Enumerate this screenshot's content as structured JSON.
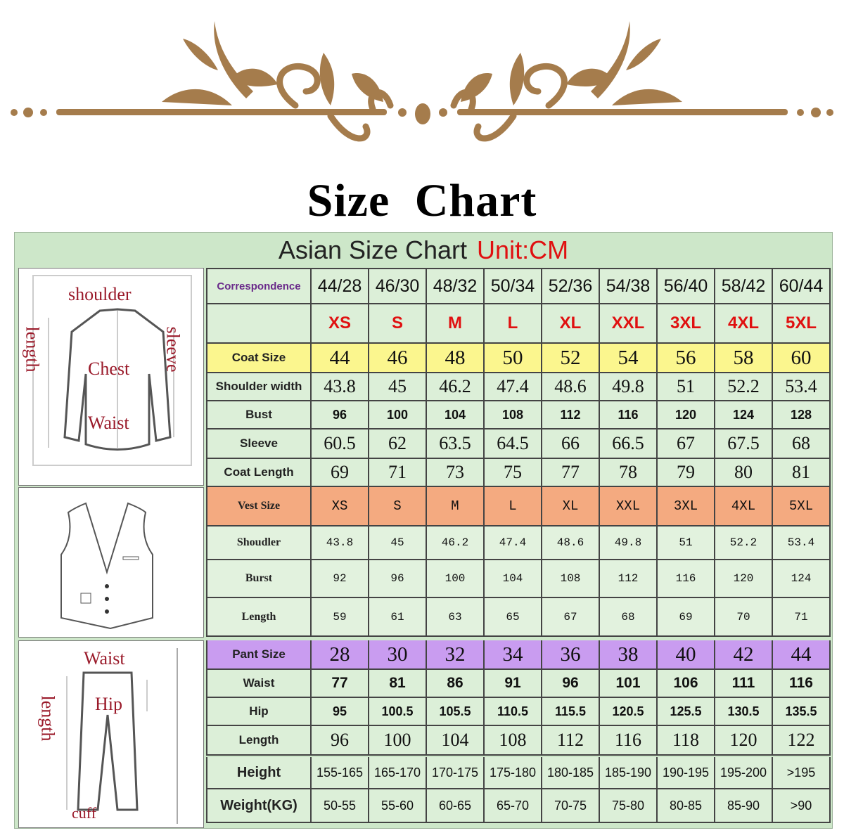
{
  "title": "Size Chart",
  "colors": {
    "ornament": "#a57c4c",
    "background": "#cde7c9",
    "cell": "#dcefd8",
    "coat_row": "#fbf68e",
    "vest_row": "#f4aa80",
    "pant_row": "#c99cf0",
    "size_letters": "#e01010"
  },
  "chart_header": {
    "title": "Asian Size Chart",
    "unit": "Unit:CM"
  },
  "diagrams": {
    "coat": {
      "shoulder": "shoulder",
      "length": "length",
      "sleeve": "sleeve",
      "chest": "Chest",
      "waist": "Waist"
    },
    "pants": {
      "waist": "Waist",
      "hip": "Hip",
      "length": "length",
      "cuff": "cuff"
    }
  },
  "table": {
    "rows": [
      {
        "style": "corr",
        "label": "Correspondence",
        "values": [
          "44/28",
          "46/30",
          "48/32",
          "50/34",
          "52/36",
          "54/38",
          "56/40",
          "58/42",
          "60/44"
        ]
      },
      {
        "style": "letters",
        "label": "",
        "values": [
          "XS",
          "S",
          "M",
          "L",
          "XL",
          "XXL",
          "3XL",
          "4XL",
          "5XL"
        ]
      },
      {
        "style": "coat",
        "label": "Coat Size",
        "values": [
          "44",
          "46",
          "48",
          "50",
          "52",
          "54",
          "56",
          "58",
          "60"
        ]
      },
      {
        "style": "plain",
        "label": "Shoulder width",
        "values": [
          "43.8",
          "45",
          "46.2",
          "47.4",
          "48.6",
          "49.8",
          "51",
          "52.2",
          "53.4"
        ]
      },
      {
        "style": "small",
        "label": "Bust",
        "values": [
          "96",
          "100",
          "104",
          "108",
          "112",
          "116",
          "120",
          "124",
          "128"
        ]
      },
      {
        "style": "plain",
        "label": "Sleeve",
        "values": [
          "60.5",
          "62",
          "63.5",
          "64.5",
          "66",
          "66.5",
          "67",
          "67.5",
          "68"
        ]
      },
      {
        "style": "plain",
        "label": "Coat Length",
        "values": [
          "69",
          "71",
          "73",
          "75",
          "77",
          "78",
          "79",
          "80",
          "81"
        ]
      },
      {
        "style": "vest",
        "label": "Vest Size",
        "values": [
          "XS",
          "S",
          "M",
          "L",
          "XL",
          "XXL",
          "3XL",
          "4XL",
          "5XL"
        ]
      },
      {
        "style": "vestrow",
        "label": "Shoudler",
        "values": [
          "43.8",
          "45",
          "46.2",
          "47.4",
          "48.6",
          "49.8",
          "51",
          "52.2",
          "53.4"
        ]
      },
      {
        "style": "vestrow",
        "label": "Burst",
        "values": [
          "92",
          "96",
          "100",
          "104",
          "108",
          "112",
          "116",
          "120",
          "124"
        ]
      },
      {
        "style": "vestrow",
        "label": "Length",
        "values": [
          "59",
          "61",
          "63",
          "65",
          "67",
          "68",
          "69",
          "70",
          "71"
        ]
      },
      {
        "style": "pant",
        "label": "Pant Size",
        "values": [
          "28",
          "30",
          "32",
          "34",
          "36",
          "38",
          "40",
          "42",
          "44"
        ]
      },
      {
        "style": "bold",
        "label": "Waist",
        "values": [
          "77",
          "81",
          "86",
          "91",
          "96",
          "101",
          "106",
          "111",
          "116"
        ]
      },
      {
        "style": "small",
        "label": "Hip",
        "values": [
          "95",
          "100.5",
          "105.5",
          "110.5",
          "115.5",
          "120.5",
          "125.5",
          "130.5",
          "135.5"
        ]
      },
      {
        "style": "plain",
        "label": "Length",
        "values": [
          "96",
          "100",
          "104",
          "108",
          "112",
          "116",
          "118",
          "120",
          "122"
        ]
      },
      {
        "style": "hw",
        "label": "Height",
        "values": [
          "155-165",
          "165-170",
          "170-175",
          "175-180",
          "180-185",
          "185-190",
          "190-195",
          "195-200",
          ">195"
        ]
      },
      {
        "style": "hw",
        "label": "Weight(KG)",
        "values": [
          "50-55",
          "55-60",
          "60-65",
          "65-70",
          "70-75",
          "75-80",
          "80-85",
          "85-90",
          ">90"
        ]
      }
    ]
  }
}
